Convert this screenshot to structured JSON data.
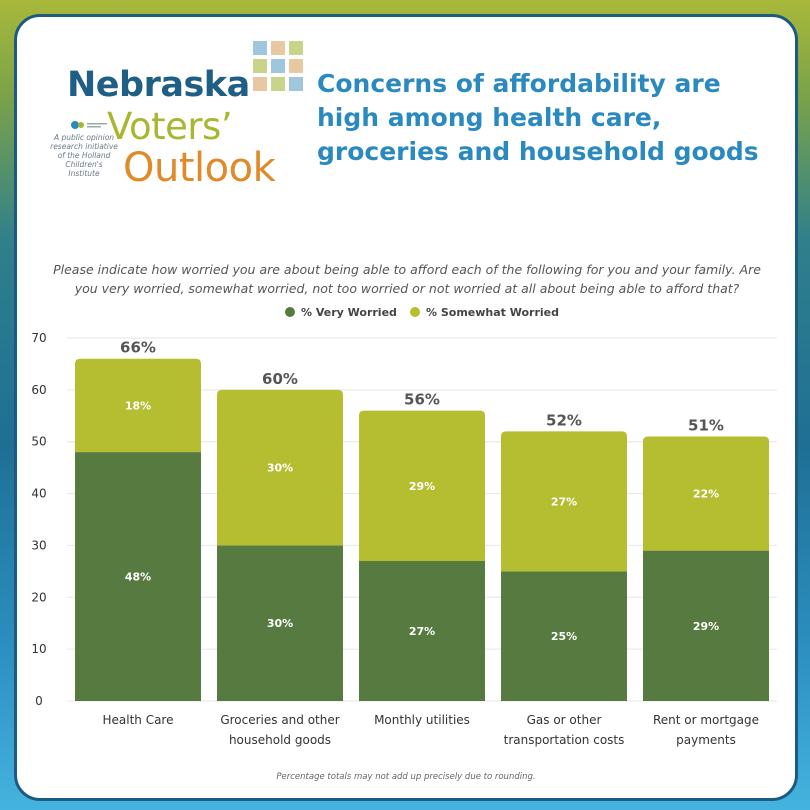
{
  "logo": {
    "line1": "Nebraska",
    "line2": "Voters’",
    "line3": "Outlook",
    "tagline": "A public opinion research initiative of the Holland Children's Institute",
    "mini_logo_text": "Holland Children's Institute"
  },
  "headline": "Concerns of affordability are high among health care, groceries and household goods",
  "question": "Please indicate how worried you are about being able to afford each of the following for you and your family. Are you very worried, somewhat worried, not too worried or not worried at all about being able to afford that?",
  "footnote": "Percentage totals may not add up precisely due to rounding.",
  "colors": {
    "very_worried": "#567a3f",
    "somewhat_worried": "#b5bd30",
    "headline": "#2a89bf",
    "axis_text": "#333333",
    "total_label": "#555555"
  },
  "chart_data": {
    "type": "bar",
    "stacked": true,
    "title": "",
    "xlabel": "",
    "ylabel": "",
    "ylim": [
      0,
      70
    ],
    "yticks": [
      0,
      10,
      20,
      30,
      40,
      50,
      60,
      70
    ],
    "grid": true,
    "legend_position": "top-center",
    "categories": [
      [
        "Health Care"
      ],
      [
        "Groceries and other",
        "household goods"
      ],
      [
        "Monthly utilities"
      ],
      [
        "Gas or other",
        "transportation costs"
      ],
      [
        "Rent or mortgage",
        "payments"
      ]
    ],
    "series": [
      {
        "name": "% Very Worried",
        "values": [
          48,
          30,
          27,
          25,
          29
        ],
        "labels": [
          "48%",
          "30%",
          "27%",
          "25%",
          "29%"
        ]
      },
      {
        "name": "% Somewhat Worried",
        "values": [
          18,
          30,
          29,
          27,
          22
        ],
        "labels": [
          "18%",
          "30%",
          "29%",
          "27%",
          "22%"
        ]
      }
    ],
    "totals": [
      66,
      60,
      56,
      52,
      51
    ],
    "total_labels": [
      "66%",
      "60%",
      "56%",
      "52%",
      "51%"
    ]
  }
}
